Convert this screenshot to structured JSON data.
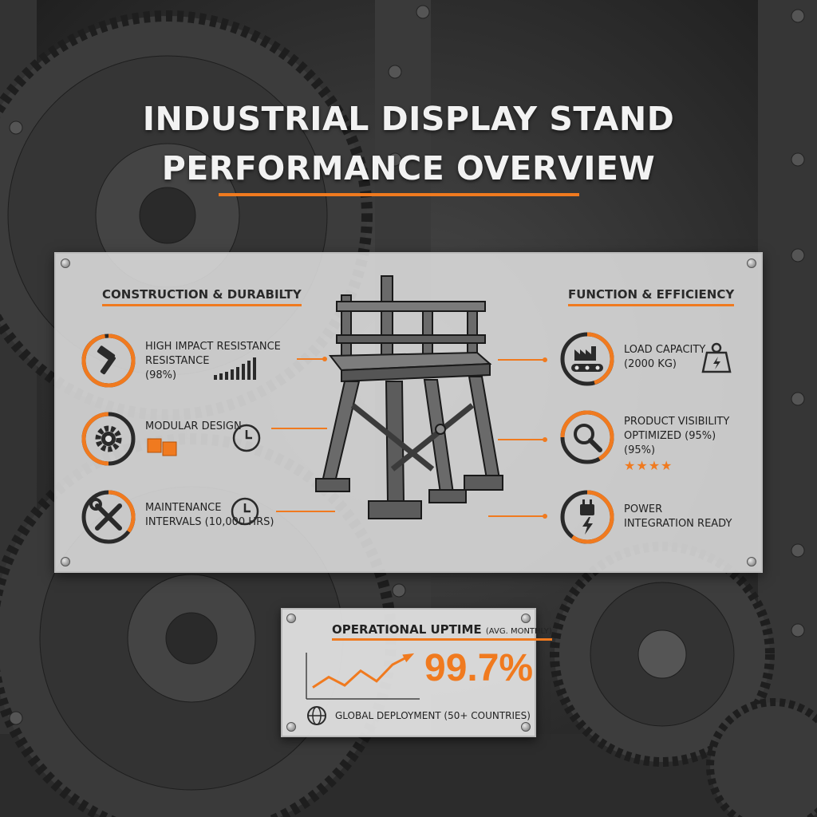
{
  "header": {
    "title_line1": "INDUSTRIAL DISPLAY STAND",
    "title_line2": "PERFORMANCE OVERVIEW"
  },
  "colors": {
    "accent": "#f07a1f",
    "dark": "#2a2a2a",
    "panel": "#e2e2e2"
  },
  "left_section": {
    "title": "CONSTRUCTION & DURABILTY",
    "features": [
      {
        "icon": "hammer-icon",
        "label_line1": "HIGH IMPACT RESISTANCE",
        "label_line2": "RESISTANCE",
        "label_line3": "(98%)",
        "progress": 0.98,
        "extra_icon": "signal-bars-icon"
      },
      {
        "icon": "gear-icon",
        "label_line1": "MODULAR DESIGN",
        "progress": 0.5,
        "extra_icon": "clock-icon"
      },
      {
        "icon": "wrench-screwdriver-icon",
        "label_line1": "MAINTENANCE",
        "label_line2": "INTERVALS (10,000 HRS)",
        "progress": 0.35,
        "extra_icon": "clock-icon"
      }
    ]
  },
  "right_section": {
    "title": "FUNCTION & EFFICIENCY",
    "features": [
      {
        "icon": "conveyor-factory-icon",
        "label_line1": "LOAD CAPACITY",
        "label_line2": "(2000 KG)",
        "progress": 0.45,
        "extra_icon": "weight-icon"
      },
      {
        "icon": "magnifier-icon",
        "label_line1": "PRODUCT VISIBILITY",
        "label_line2": "OPTIMIZED (95%)",
        "label_line3": "(95%)",
        "progress": 0.95,
        "rating": 4,
        "extra_icon": "stars-icon"
      },
      {
        "icon": "plug-bolt-icon",
        "label_line1": "POWER",
        "label_line2": "INTEGRATION READY",
        "progress": 0.6
      }
    ]
  },
  "uptime": {
    "title": "OPERATIONAL UPTIME",
    "subtitle": "(AVG. MONTHLY)",
    "value": "99.7%",
    "trend": [
      0.2,
      0.45,
      0.25,
      0.6,
      0.35,
      0.75,
      0.95
    ],
    "footer": "GLOBAL DEPLOYMENT (50+ COUNTRIES)"
  }
}
